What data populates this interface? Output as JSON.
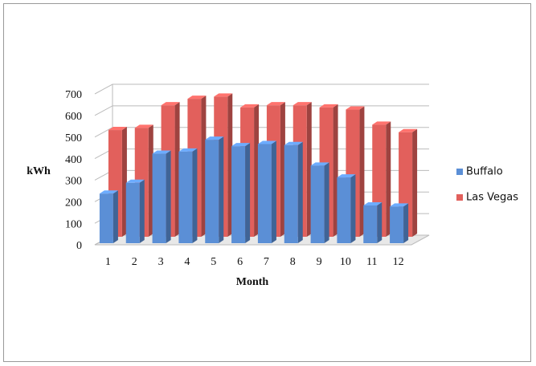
{
  "chart_data": {
    "type": "bar3d",
    "y_label": "kWh",
    "x_label": "Month",
    "categories": [
      "1",
      "2",
      "3",
      "4",
      "5",
      "6",
      "7",
      "8",
      "9",
      "10",
      "11",
      "12"
    ],
    "series": [
      {
        "name": "Buffalo",
        "color": "#5b8fd6",
        "values": [
          230,
          280,
          415,
          425,
          480,
          450,
          460,
          455,
          360,
          305,
          175,
          170
        ]
      },
      {
        "name": "Las Vegas",
        "color": "#e2605c",
        "values": [
          495,
          505,
          610,
          640,
          650,
          600,
          610,
          610,
          600,
          590,
          520,
          485
        ]
      }
    ],
    "ylim": [
      0,
      700
    ],
    "yticks": [
      0,
      100,
      200,
      300,
      400,
      500,
      600,
      700
    ],
    "grid": true
  }
}
